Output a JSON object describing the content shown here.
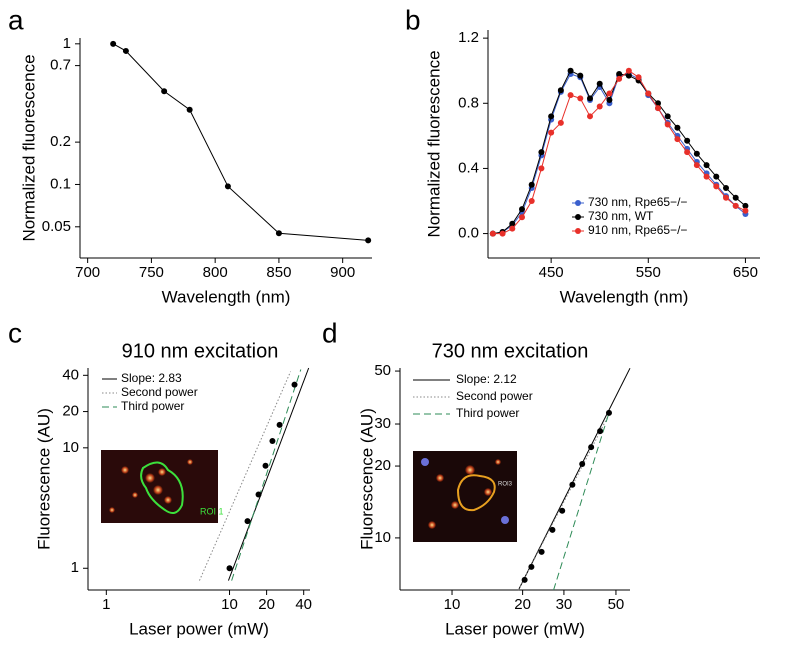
{
  "chart_data": [
    {
      "type": "line",
      "panel_label": "a",
      "xlabel": "Wavelength (nm)",
      "ylabel": "Normalized fluorescence",
      "x": [
        720,
        730,
        760,
        780,
        810,
        850,
        920
      ],
      "values": [
        1.0,
        0.89,
        0.46,
        0.34,
        0.097,
        0.045,
        0.04
      ],
      "color": "#000000",
      "xlim": [
        694,
        923
      ],
      "ylim": [
        0.03,
        1.1
      ],
      "xticks": [
        700,
        750,
        800,
        850,
        900
      ],
      "yticks": [
        0.05,
        0.1,
        0.2,
        0.7,
        1
      ],
      "ylog": true
    },
    {
      "type": "line",
      "panel_label": "b",
      "xlabel": "Wavelength (nm)",
      "ylabel": "Normalized fluorescence",
      "x": [
        390,
        400,
        410,
        420,
        430,
        440,
        450,
        460,
        470,
        480,
        490,
        500,
        510,
        520,
        530,
        540,
        550,
        560,
        570,
        580,
        590,
        600,
        610,
        620,
        630,
        640,
        650
      ],
      "series": [
        {
          "name": "730 nm, Rpe65−/−",
          "color": "#3a5fcd",
          "values": [
            0,
            0.01,
            0.05,
            0.13,
            0.28,
            0.48,
            0.7,
            0.87,
            0.98,
            0.96,
            0.82,
            0.9,
            0.8,
            0.97,
            0.98,
            0.95,
            0.85,
            0.77,
            0.68,
            0.6,
            0.52,
            0.44,
            0.37,
            0.3,
            0.23,
            0.17,
            0.12
          ]
        },
        {
          "name": "730 nm,  WT",
          "color": "#000000",
          "values": [
            0,
            0.01,
            0.06,
            0.15,
            0.3,
            0.5,
            0.72,
            0.88,
            1.0,
            0.97,
            0.83,
            0.92,
            0.82,
            0.98,
            0.97,
            0.94,
            0.86,
            0.8,
            0.72,
            0.65,
            0.57,
            0.49,
            0.42,
            0.35,
            0.28,
            0.22,
            0.17
          ]
        },
        {
          "name": "910 nm, Rpe65−/−",
          "color": "#e8302a",
          "values": [
            0,
            0,
            0.03,
            0.1,
            0.2,
            0.4,
            0.62,
            0.68,
            0.85,
            0.83,
            0.72,
            0.78,
            0.86,
            0.95,
            1.0,
            0.96,
            0.86,
            0.77,
            0.67,
            0.58,
            0.5,
            0.42,
            0.35,
            0.29,
            0.22,
            0.17,
            0.14
          ]
        }
      ],
      "xlim": [
        385,
        665
      ],
      "ylim": [
        -0.15,
        1.25
      ],
      "xticks": [
        450,
        550,
        650
      ],
      "yticks": [
        {
          "value": 0,
          "label": "0.0"
        },
        0.4,
        0.8,
        1.2
      ]
    },
    {
      "type": "scatter",
      "panel_label": "c",
      "title": "910 nm excitation",
      "xlabel": "Laser power (mW)",
      "ylabel": "Fluorescence (AU)",
      "inset_label": "ROI 1",
      "x": [
        10,
        14,
        17.2,
        19.6,
        22.3,
        25.5,
        33.7
      ],
      "values": [
        1,
        2.46,
        4.1,
        7.1,
        11.4,
        15.5,
        33.5
      ],
      "color": "#000000",
      "series": [
        {
          "name": "Slope: 2.83",
          "color": "#000000",
          "style": "solid",
          "x": [
            9.8,
            43.9
          ],
          "values": [
            0.79,
            46
          ]
        },
        {
          "name": "Second power",
          "color": "#888888",
          "style": "dotted",
          "x": [
            5.7,
            31.3
          ],
          "values": [
            0.79,
            43
          ]
        },
        {
          "name": "Third power",
          "color": "#2e8b57",
          "style": "dashed",
          "x": [
            10.4,
            37.9
          ],
          "values": [
            0.79,
            44.7
          ]
        }
      ],
      "xlim": [
        0.71,
        45
      ],
      "ylim": [
        0.66,
        46
      ],
      "xticks": [
        1,
        10,
        20,
        40
      ],
      "yticks": [
        1,
        10,
        20,
        40
      ],
      "xlog": true,
      "ylog": true
    },
    {
      "type": "scatter",
      "panel_label": "d",
      "title": "730 nm excitation",
      "xlabel": "Laser power (mW)",
      "ylabel": "Fluorescence (AU)",
      "inset_label": "ROI3",
      "x": [
        20.4,
        21.8,
        24.1,
        26.8,
        29.5,
        32.6,
        35.9,
        39.2,
        42.8,
        46.7
      ],
      "values": [
        6.67,
        7.56,
        8.74,
        10.8,
        13.0,
        16.7,
        20.4,
        24.0,
        28.0,
        33.4
      ],
      "color": "#000000",
      "series": [
        {
          "name": "Slope: 2.12",
          "color": "#000000",
          "style": "solid",
          "x": [
            19.2,
            57.4
          ],
          "values": [
            6.05,
            51.4
          ]
        },
        {
          "name": "Second power",
          "color": "#888888",
          "style": "dotted",
          "x": [
            19.2,
            47.2
          ],
          "values": [
            6.05,
            33.6
          ]
        },
        {
          "name": "Third power",
          "color": "#2e8b57",
          "style": "dashed",
          "x": [
            27.1,
            46.7
          ],
          "values": [
            6.05,
            33.4
          ]
        }
      ],
      "xlim": [
        6,
        57.4
      ],
      "ylim": [
        6.05,
        51.5
      ],
      "xticks": [
        10,
        20,
        30,
        50
      ],
      "yticks": [
        10,
        20,
        30,
        50
      ],
      "xlog": true,
      "ylog": true
    }
  ]
}
